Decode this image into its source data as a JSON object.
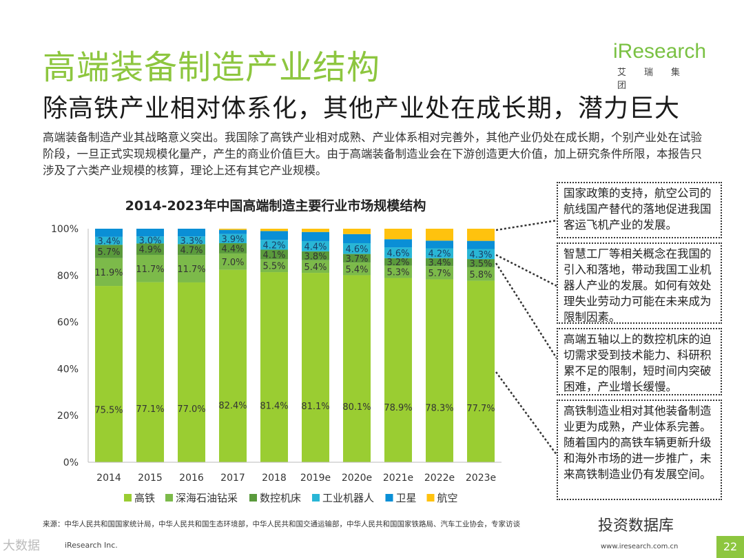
{
  "page": {
    "title": "高端装备制造产业结构",
    "subtitle": "除高铁产业相对体系化，其他产业处在成长期，潜力巨大",
    "intro": "高端装备制造产业其战略意义突出。我国除了高铁产业相对成熟、产业体系相对完善外，其他产业仍处在成长期，个别产业处在试验阶段，一旦正式实现规模化量产，产生的商业价值巨大。由于高端装备制造业会在下游创造更大价值，加上研究条件所限，本报告只涉及了六类产业规模的核算，理论上还有其它产业规模。"
  },
  "logo": {
    "text_main": "Research",
    "text_i": "i",
    "text_sub": "艾瑞集团"
  },
  "callouts": [
    "国家政策的支持，航空公司的航线国产替代的落地促进我国客运飞机产业的发展。",
    "智慧工厂等相关概念在我国的引入和落地，带动我国工业机器人产业的发展。如何有效处理失业劳动力可能在未来成为限制因素。",
    "高端五轴以上的数控机床的迫切需求受到技术能力、科研积累不足的限制，短时间内突破困难，产业增长缓慢。",
    "高铁制造业相对其他装备制造业更为成熟，产业体系完善。随着国内的高铁车辆更新升级和海外市场的进一步推广，未来高铁制造业仍有发展空间。"
  ],
  "footer": {
    "source": "来源：中华人民共和国国家统计局，中华人民共和国生态环境部，中华人民共和国交通运输部，中华人民共和国国家铁路局、汽车工业协会，专家访谈",
    "copyright": "iResearch Inc.",
    "website": "www.iresearch.com.cn",
    "page_number": "22",
    "watermark_right": "投资数据库",
    "watermark_left": "大数据"
  },
  "chart_data": {
    "type": "bar",
    "stacked": true,
    "title": "2014-2023年中国高端制造主要行业市场规模结构",
    "categories": [
      "2014",
      "2015",
      "2016",
      "2017",
      "2018",
      "2019e",
      "2020e",
      "2021e",
      "2022e",
      "2023e"
    ],
    "yticks": [
      "0%",
      "20%",
      "40%",
      "60%",
      "80%",
      "100%"
    ],
    "ylim": [
      0,
      100
    ],
    "series": [
      {
        "name": "高铁",
        "color": "#9acd32",
        "values": [
          75.5,
          77.1,
          77.0,
          82.4,
          81.4,
          81.1,
          80.1,
          78.9,
          78.3,
          77.7
        ],
        "labels": [
          "75.5%",
          "77.1%",
          "77.0%",
          "82.4%",
          "81.4%",
          "81.1%",
          "80.1%",
          "78.9%",
          "78.3%",
          "77.7%"
        ]
      },
      {
        "name": "深海石油钻采",
        "color": "#7cba4a",
        "values": [
          11.9,
          11.7,
          11.7,
          7.0,
          5.5,
          5.4,
          5.4,
          5.3,
          5.7,
          5.8
        ],
        "labels": [
          "11.9%",
          "11.7%",
          "11.7%",
          "7.0%",
          "5.5%",
          "5.4%",
          "5.4%",
          "5.3%",
          "5.7%",
          "5.8%"
        ]
      },
      {
        "name": "数控机床",
        "color": "#5a9a3c",
        "values": [
          5.7,
          4.9,
          4.7,
          4.4,
          4.1,
          3.8,
          3.7,
          3.2,
          3.4,
          3.5
        ],
        "labels": [
          "5.7%",
          "4.9%",
          "4.7%",
          "4.4%",
          "4.1%",
          "3.8%",
          "3.7%",
          "3.2%",
          "3.4%",
          "3.5%"
        ]
      },
      {
        "name": "工业机器人",
        "color": "#29b6d6",
        "values": [
          3.4,
          3.0,
          3.3,
          3.9,
          4.2,
          4.4,
          4.6,
          4.6,
          4.2,
          4.3
        ],
        "labels": [
          "3.4%",
          "3.0%",
          "3.3%",
          "3.9%",
          "4.2%",
          "4.4%",
          "4.6%",
          "4.6%",
          "4.2%",
          "4.3%"
        ]
      },
      {
        "name": "卫星",
        "color": "#0a8fd6",
        "values": [
          3.5,
          3.3,
          3.3,
          1.8,
          3.8,
          3.9,
          3.9,
          3.5,
          3.3,
          3.5
        ],
        "labels": []
      },
      {
        "name": "航空",
        "color": "#ffc20e",
        "values": [
          0.0,
          0.0,
          0.0,
          0.5,
          1.0,
          1.4,
          2.3,
          4.5,
          5.1,
          5.2
        ],
        "labels": []
      }
    ]
  }
}
